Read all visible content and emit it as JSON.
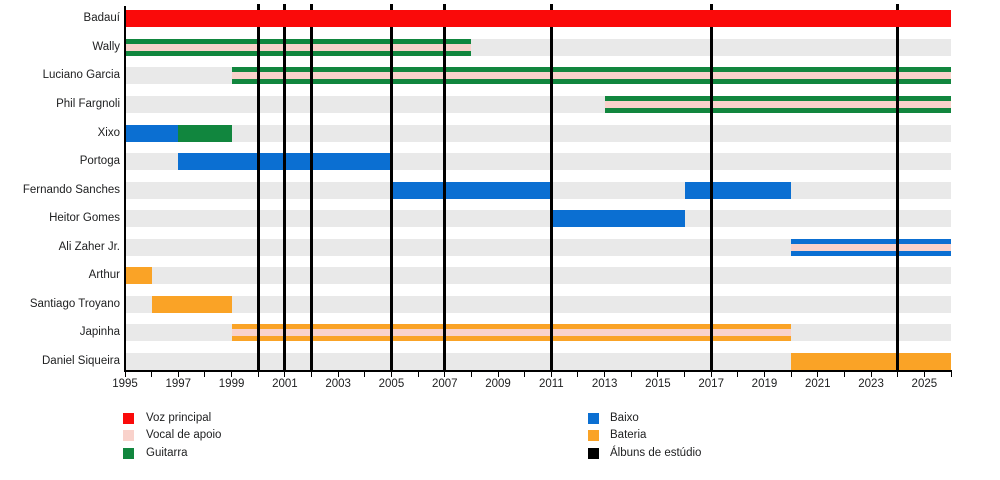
{
  "chart_data": {
    "type": "timeline-gantt",
    "description": "Band members timeline with studio album release markers",
    "x_axis": {
      "start_year": 1995,
      "end_year": 2026,
      "tick_every_years": 1,
      "label_every_years": 2,
      "tick_labels": [
        "1995",
        "1997",
        "1999",
        "2001",
        "2003",
        "2005",
        "2007",
        "2009",
        "2011",
        "2013",
        "2015",
        "2017",
        "2019",
        "2021",
        "2023",
        "2025"
      ]
    },
    "rows": [
      {
        "name": "Badauí",
        "segments": [
          {
            "role": "Voz principal",
            "start": 1995,
            "end": 2026
          }
        ]
      },
      {
        "name": "Wally",
        "segments": [
          {
            "role": "Guitarra",
            "secondary": "Vocal de apoio",
            "start": 1995,
            "end": 2008
          }
        ]
      },
      {
        "name": "Luciano Garcia",
        "segments": [
          {
            "role": "Guitarra",
            "secondary": "Vocal de apoio",
            "start": 1999,
            "end": 2026
          }
        ]
      },
      {
        "name": "Phil Fargnoli",
        "segments": [
          {
            "role": "Guitarra",
            "secondary": "Vocal de apoio",
            "start": 2013,
            "end": 2026
          }
        ]
      },
      {
        "name": "Xixo",
        "segments": [
          {
            "role": "Baixo",
            "start": 1995,
            "end": 1997
          },
          {
            "role": "Guitarra",
            "start": 1997,
            "end": 1999
          }
        ]
      },
      {
        "name": "Portoga",
        "segments": [
          {
            "role": "Baixo",
            "start": 1997,
            "end": 2005
          }
        ]
      },
      {
        "name": "Fernando Sanches",
        "segments": [
          {
            "role": "Baixo",
            "start": 2005,
            "end": 2011
          },
          {
            "role": "Baixo",
            "start": 2016,
            "end": 2020
          }
        ]
      },
      {
        "name": "Heitor Gomes",
        "segments": [
          {
            "role": "Baixo",
            "start": 2011,
            "end": 2016
          }
        ]
      },
      {
        "name": "Ali Zaher Jr.",
        "segments": [
          {
            "role": "Baixo",
            "secondary": "Vocal de apoio",
            "start": 2020,
            "end": 2026
          }
        ]
      },
      {
        "name": "Arthur",
        "segments": [
          {
            "role": "Bateria",
            "start": 1995,
            "end": 1996
          }
        ]
      },
      {
        "name": "Santiago Troyano",
        "segments": [
          {
            "role": "Bateria",
            "start": 1996,
            "end": 1999
          }
        ]
      },
      {
        "name": "Japinha",
        "segments": [
          {
            "role": "Bateria",
            "secondary": "Vocal de apoio",
            "start": 1999,
            "end": 2020
          }
        ]
      },
      {
        "name": "Daniel Siqueira",
        "segments": [
          {
            "role": "Bateria",
            "start": 2020,
            "end": 2026
          }
        ]
      }
    ],
    "albums": {
      "label": "Álbuns de estúdio",
      "years": [
        2000,
        2001,
        2002,
        2005,
        2007,
        2011,
        2017,
        2024
      ]
    },
    "legend": {
      "left": [
        {
          "label": "Voz principal",
          "color": "#FA0A0A"
        },
        {
          "label": "Vocal de apoio",
          "color": "#F9D2CB"
        },
        {
          "label": "Guitarra",
          "color": "#11863E"
        }
      ],
      "right": [
        {
          "label": "Baixo",
          "color": "#0B6FD2"
        },
        {
          "label": "Bateria",
          "color": "#FAA326"
        },
        {
          "label": "Álbuns de estúdio",
          "color": "#000000"
        }
      ]
    },
    "style_colors": {
      "row_track": "#E9E9E9",
      "axis": "#000000",
      "album_marker": "#000000",
      "background": "#FFFFFF"
    }
  }
}
